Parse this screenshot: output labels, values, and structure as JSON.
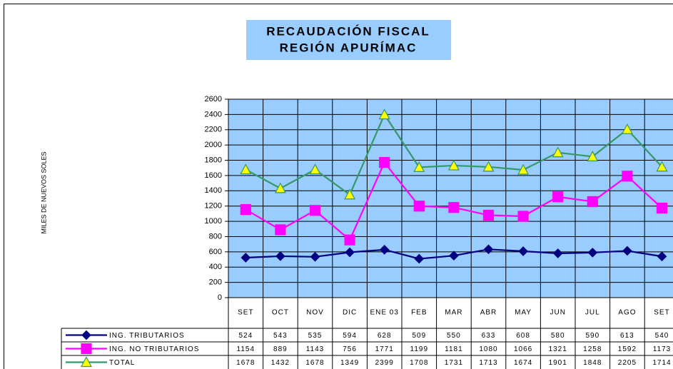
{
  "chart_data": {
    "type": "line",
    "title": "RECAUDACIÓN FISCAL",
    "subtitle": "REGIÓN APURÍMAC",
    "y_label": "MILES DE NUEVOS SOLES",
    "categories": [
      "SET",
      "OCT",
      "NOV",
      "DIC",
      "ENE 03",
      "FEB",
      "MAR",
      "ABR",
      "MAY",
      "JUN",
      "JUL",
      "AGO",
      "SET"
    ],
    "series": [
      {
        "name": "ING. TRIBUTARIOS",
        "color": "#000080",
        "marker": "diamond",
        "marker_fill": "#000080",
        "values": [
          524,
          543,
          535,
          594,
          628,
          509,
          550,
          633,
          608,
          580,
          590,
          613,
          540
        ]
      },
      {
        "name": "ING. NO TRIBUTARIOS",
        "color": "#ff00ff",
        "marker": "square",
        "marker_fill": "#ff00ff",
        "values": [
          1154,
          889,
          1143,
          756,
          1771,
          1199,
          1181,
          1080,
          1066,
          1321,
          1258,
          1592,
          1173
        ]
      },
      {
        "name": "TOTAL",
        "color": "#339966",
        "marker": "triangle",
        "marker_fill": "#ffff00",
        "values": [
          1678,
          1432,
          1678,
          1349,
          2399,
          1708,
          1731,
          1713,
          1674,
          1901,
          1848,
          2205,
          1714
        ]
      }
    ],
    "ylim": [
      0,
      2600
    ],
    "yticks": [
      0,
      200,
      400,
      600,
      800,
      1000,
      1200,
      1400,
      1600,
      1800,
      2000,
      2200,
      2400,
      2600
    ],
    "grid": true,
    "plot_background": "#99ccff"
  }
}
